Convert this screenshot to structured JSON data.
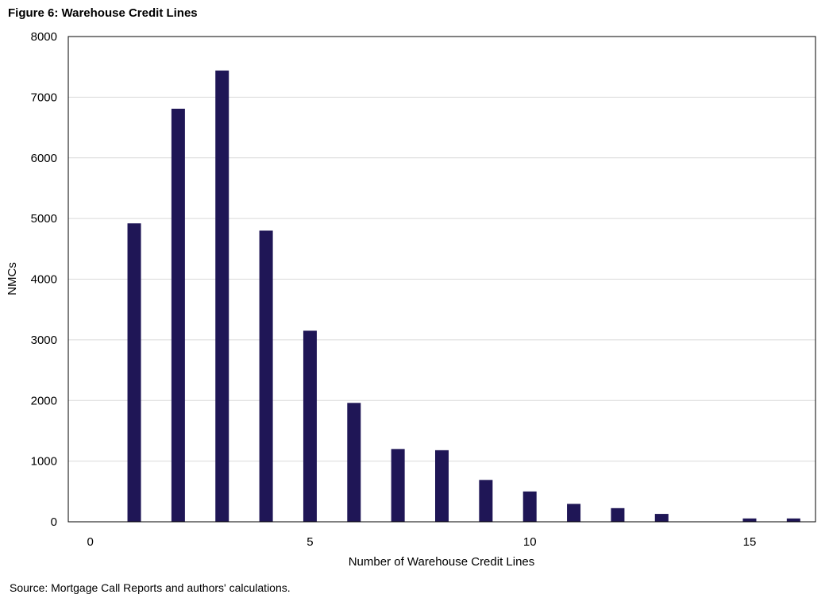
{
  "figure": {
    "title": "Figure 6: Warehouse Credit Lines",
    "source": "Source: Mortgage Call Reports and authors' calculations."
  },
  "colors": {
    "bar": "#1f1656",
    "grid": "#d9d9d9",
    "frame": "#000000"
  },
  "chart_data": {
    "type": "bar",
    "title": "Figure 6: Warehouse Credit Lines",
    "xlabel": "Number of Warehouse Credit Lines",
    "ylabel": "NMCs",
    "x": [
      1,
      2,
      3,
      4,
      5,
      6,
      7,
      8,
      9,
      10,
      11,
      12,
      13,
      15,
      16
    ],
    "values": [
      4920,
      6810,
      7440,
      4800,
      3150,
      1960,
      1200,
      1180,
      690,
      500,
      295,
      225,
      130,
      55,
      55
    ],
    "xlim": [
      -0.5,
      16.5
    ],
    "ylim": [
      0,
      8000
    ],
    "xticks": [
      0,
      5,
      10,
      15
    ],
    "yticks": [
      0,
      1000,
      2000,
      3000,
      4000,
      5000,
      6000,
      7000,
      8000
    ],
    "grid": true,
    "legend": "none"
  }
}
